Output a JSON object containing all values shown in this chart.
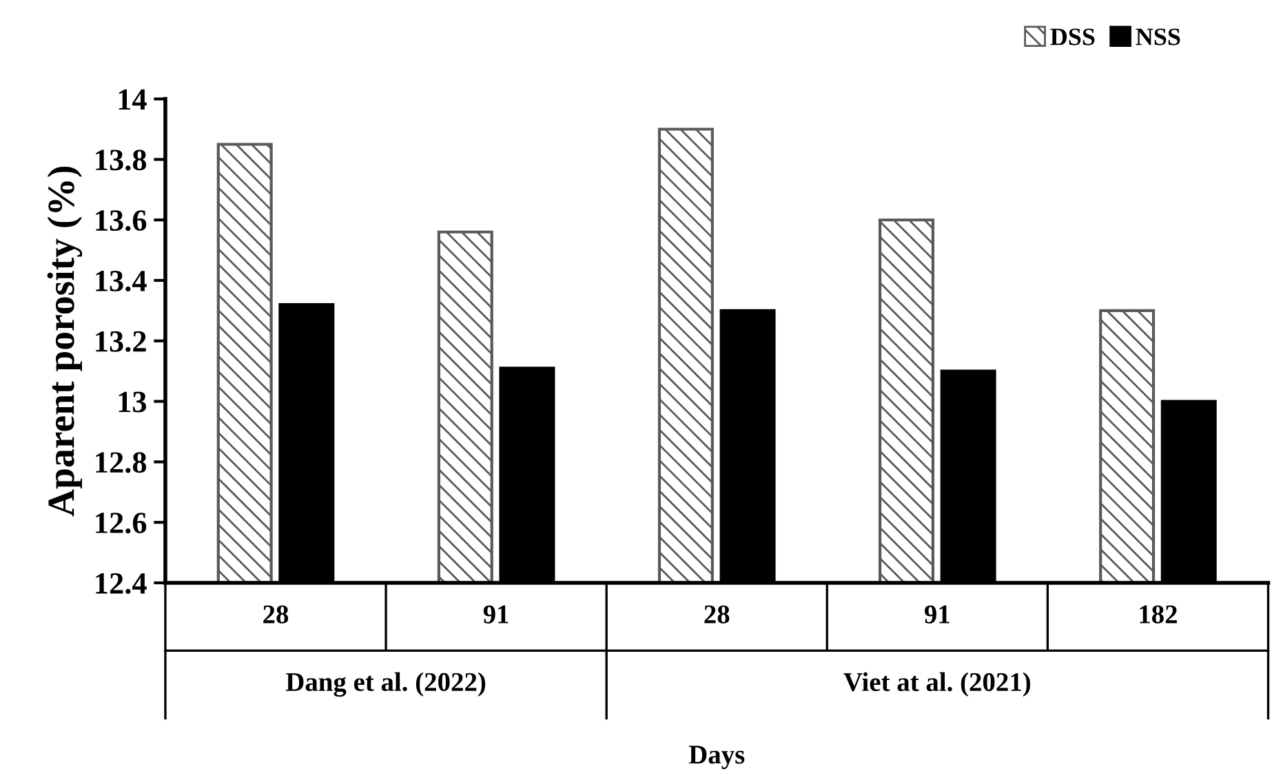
{
  "chart_data": {
    "type": "bar",
    "xlabel": "Days",
    "ylabel": "Aparent porosity (%)",
    "categories": [
      "28",
      "91",
      "28",
      "91",
      "182"
    ],
    "annotations": [
      "Dang et al. (2022)",
      "Viet at al. (2021)"
    ],
    "series": [
      {
        "name": "DSS",
        "color": "#595959",
        "values": [
          13.85,
          13.56,
          13.9,
          13.6,
          13.3
        ]
      },
      {
        "name": "NSS",
        "color": "#000000",
        "values": [
          13.32,
          13.11,
          13.3,
          13.1,
          13.0
        ]
      }
    ],
    "ylim": [
      12.4,
      14
    ],
    "yticks": [
      12.4,
      12.6,
      12.8,
      13,
      13.2,
      13.4,
      13.6,
      13.8,
      14
    ],
    "grid": false,
    "legend": "top right"
  }
}
